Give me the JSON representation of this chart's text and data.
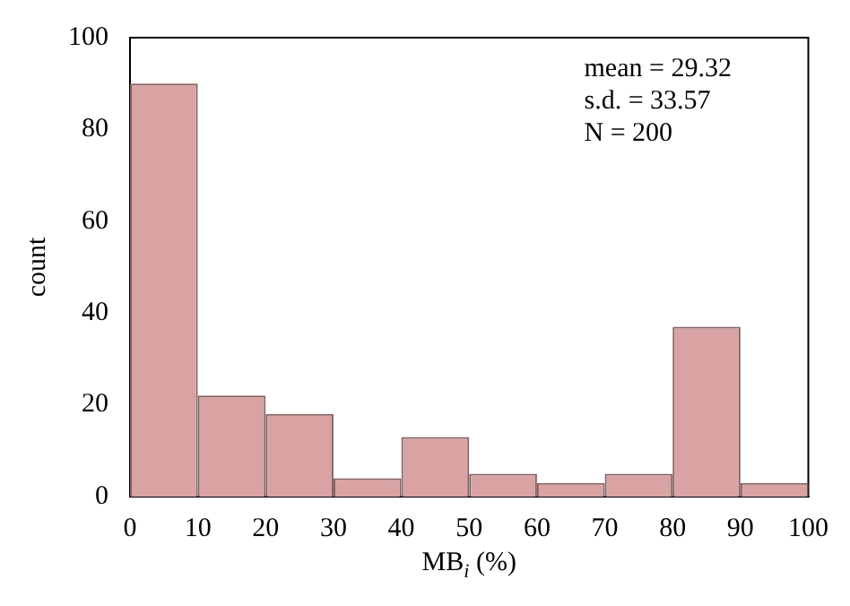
{
  "chart_data": {
    "type": "histogram",
    "xlabel": "MB$_{i}$ (%)",
    "ylabel": "count",
    "bins": [
      0,
      10,
      20,
      30,
      40,
      50,
      60,
      70,
      80,
      90,
      100
    ],
    "values": [
      90,
      22,
      18,
      4,
      13,
      5,
      3,
      5,
      37,
      3
    ],
    "color": "#d9a3a3",
    "xlim": [
      0,
      100
    ],
    "xticks": [
      0,
      10,
      20,
      30,
      40,
      50,
      60,
      70,
      80,
      90,
      100
    ],
    "ylim": [
      0,
      100
    ],
    "yticks": [
      0,
      20,
      40,
      60,
      80,
      100
    ],
    "grid": false,
    "legend": false,
    "annotations": [
      "mean = 29.32",
      "s.d. = 33.57",
      "N = 200"
    ]
  }
}
